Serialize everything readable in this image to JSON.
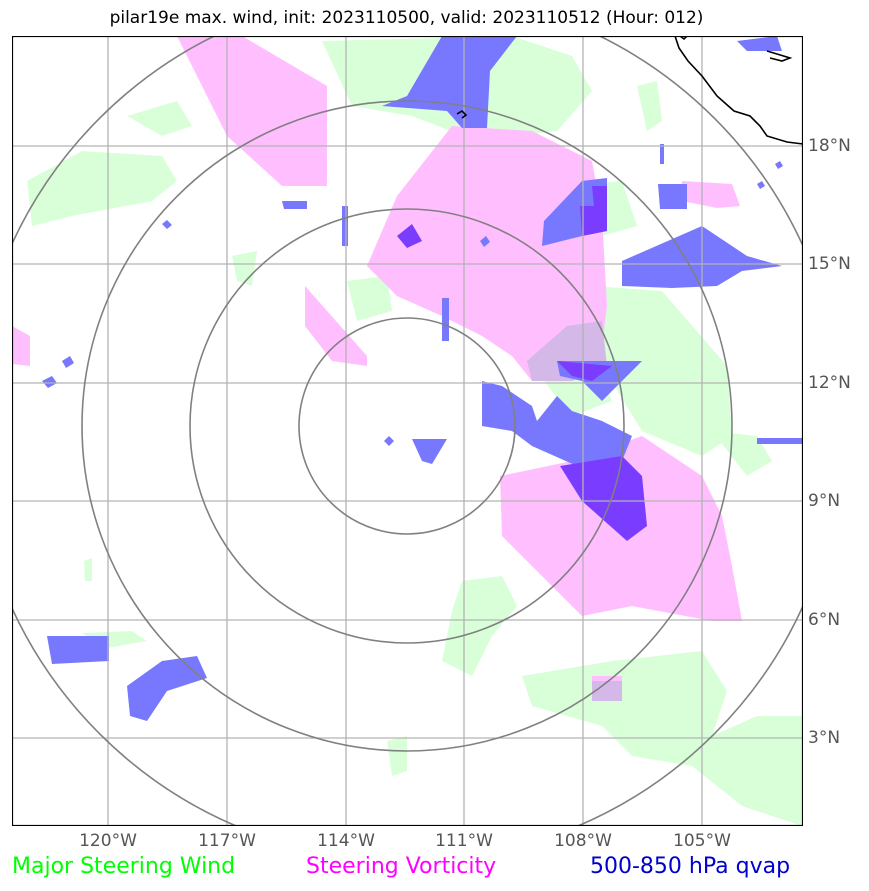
{
  "title": "pilar19e max. wind, init: 2023110500, valid: 2023110512 (Hour: 012)",
  "lon_labels": [
    "120°W",
    "117°W",
    "114°W",
    "111°W",
    "108°W",
    "105°W"
  ],
  "lat_labels": [
    "18°N",
    "15°N",
    "12°N",
    "9°N",
    "6°N",
    "3°N"
  ],
  "legend": {
    "wind": {
      "label": "Major Steering Wind",
      "color": "#00ff00"
    },
    "vorticity": {
      "label": "Steering Vorticity",
      "color": "#ff00ff"
    },
    "qvap": {
      "label": "500-850 hPa qvap",
      "color": "#0000cc"
    }
  },
  "layer_colors": {
    "wind_fill": "#d9ffd9",
    "vorticity_fill": "#ffbfff",
    "qvap_fill": "#7878ff",
    "overlap_fill": "#7a3cff",
    "rings": "#808080",
    "grid": "#b3b3b3",
    "coast": "#000000"
  }
}
